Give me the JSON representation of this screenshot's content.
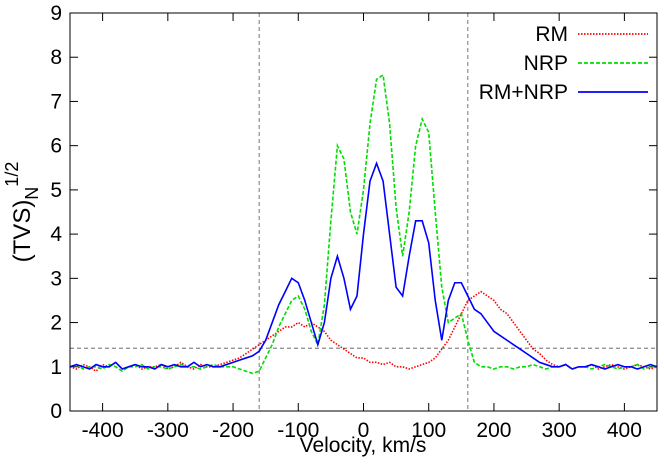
{
  "chart_data": {
    "type": "line",
    "xlabel": "Velocity, km/s",
    "ylabel": {
      "base": "(TVS)",
      "sub": "N",
      "sup": "1/2"
    },
    "x": [
      -450,
      -440,
      -430,
      -420,
      -410,
      -400,
      -390,
      -380,
      -370,
      -360,
      -350,
      -340,
      -330,
      -320,
      -310,
      -300,
      -290,
      -280,
      -270,
      -260,
      -250,
      -240,
      -230,
      -220,
      -210,
      -200,
      -190,
      -180,
      -170,
      -160,
      -150,
      -140,
      -130,
      -120,
      -110,
      -100,
      -90,
      -80,
      -70,
      -60,
      -50,
      -40,
      -30,
      -20,
      -10,
      0,
      10,
      20,
      30,
      40,
      50,
      60,
      70,
      80,
      90,
      100,
      110,
      120,
      130,
      140,
      150,
      160,
      170,
      180,
      190,
      200,
      210,
      220,
      230,
      240,
      250,
      260,
      270,
      280,
      290,
      300,
      310,
      320,
      330,
      340,
      350,
      360,
      370,
      380,
      390,
      400,
      410,
      420,
      430,
      440,
      450
    ],
    "series": [
      {
        "name": "RM",
        "color": "#ff0000",
        "dash": "dotted",
        "values": [
          1.0,
          0.95,
          1.05,
          1.0,
          0.9,
          1.05,
          1.0,
          1.1,
          0.95,
          1.0,
          1.05,
          0.95,
          1.0,
          1.0,
          1.05,
          0.95,
          1.0,
          1.1,
          1.0,
          0.95,
          1.05,
          1.0,
          1.0,
          1.05,
          1.1,
          1.15,
          1.2,
          1.3,
          1.4,
          1.5,
          1.6,
          1.7,
          1.8,
          1.9,
          1.9,
          2.0,
          1.9,
          2.0,
          1.9,
          1.8,
          1.6,
          1.5,
          1.4,
          1.3,
          1.2,
          1.2,
          1.1,
          1.1,
          1.05,
          1.1,
          1.0,
          1.0,
          0.95,
          1.0,
          1.05,
          1.1,
          1.2,
          1.4,
          1.6,
          1.9,
          2.2,
          2.5,
          2.6,
          2.7,
          2.6,
          2.5,
          2.3,
          2.2,
          2.0,
          1.8,
          1.6,
          1.4,
          1.3,
          1.15,
          1.05,
          1.0,
          1.05,
          0.95,
          1.0,
          1.0,
          1.05,
          0.95,
          1.0,
          1.05,
          1.0,
          0.95,
          1.0,
          1.05,
          1.0,
          0.95,
          1.0
        ]
      },
      {
        "name": "NRP",
        "color": "#00dd00",
        "dash": "dashed",
        "values": [
          1.0,
          1.05,
          0.95,
          1.0,
          1.0,
          0.95,
          1.05,
          1.0,
          0.9,
          1.0,
          1.0,
          1.05,
          0.95,
          1.0,
          1.0,
          0.95,
          1.0,
          1.05,
          1.0,
          1.0,
          0.95,
          1.0,
          1.05,
          1.0,
          1.0,
          1.0,
          0.95,
          0.9,
          0.85,
          0.9,
          1.2,
          1.5,
          1.9,
          2.2,
          2.5,
          2.6,
          2.3,
          1.8,
          1.5,
          2.4,
          4.3,
          6.0,
          5.7,
          4.5,
          4.0,
          5.0,
          6.5,
          7.5,
          7.6,
          6.5,
          4.6,
          3.5,
          4.5,
          6.0,
          6.6,
          6.3,
          4.5,
          2.8,
          2.0,
          2.1,
          2.2,
          1.6,
          1.1,
          1.0,
          1.0,
          0.95,
          1.0,
          1.0,
          0.95,
          1.0,
          1.0,
          1.05,
          1.0,
          0.95,
          1.0,
          1.0,
          1.05,
          0.95,
          1.0,
          1.0,
          0.95,
          1.0,
          1.05,
          1.0,
          0.95,
          1.0,
          1.0,
          1.05,
          0.95,
          1.0,
          1.0
        ]
      },
      {
        "name": "RM+NRP",
        "color": "#0000ff",
        "dash": "solid",
        "values": [
          1.0,
          1.05,
          1.0,
          0.95,
          1.05,
          1.0,
          1.0,
          1.1,
          0.95,
          1.0,
          1.05,
          1.0,
          1.0,
          0.95,
          1.05,
          1.0,
          1.05,
          1.0,
          1.0,
          1.1,
          1.0,
          1.05,
          1.0,
          1.0,
          1.05,
          1.1,
          1.15,
          1.2,
          1.25,
          1.35,
          1.6,
          2.0,
          2.4,
          2.7,
          3.0,
          2.9,
          2.5,
          2.0,
          1.5,
          2.0,
          3.0,
          3.5,
          3.0,
          2.3,
          2.6,
          4.0,
          5.2,
          5.6,
          5.2,
          4.0,
          2.8,
          2.6,
          3.5,
          4.3,
          4.3,
          3.8,
          2.5,
          1.6,
          2.5,
          2.9,
          2.9,
          2.6,
          2.3,
          2.2,
          2.0,
          1.8,
          1.7,
          1.6,
          1.5,
          1.4,
          1.3,
          1.2,
          1.1,
          1.05,
          1.0,
          1.0,
          1.05,
          0.95,
          1.0,
          1.0,
          1.05,
          1.0,
          0.95,
          1.0,
          1.05,
          1.0,
          1.0,
          0.95,
          1.0,
          1.05,
          1.0
        ]
      }
    ],
    "xlim": [
      -450,
      450
    ],
    "xticks": [
      -400,
      -300,
      -200,
      -100,
      0,
      100,
      200,
      300,
      400
    ],
    "ylim": [
      0,
      9
    ],
    "yticks": [
      0,
      1,
      2,
      3,
      4,
      5,
      6,
      7,
      8,
      9
    ],
    "vlines": [
      -160,
      160
    ],
    "hline": 1.42,
    "legend": "top-right"
  }
}
